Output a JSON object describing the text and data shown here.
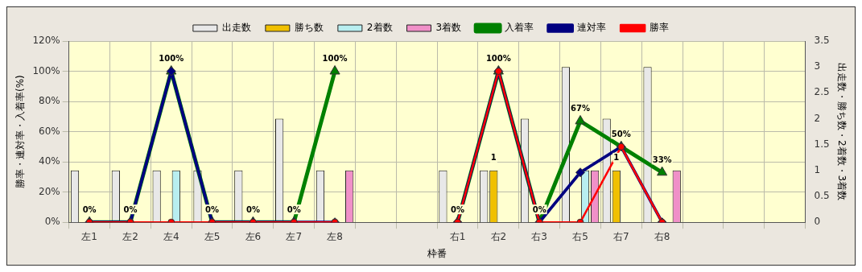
{
  "chart_data": {
    "type": "bar",
    "xlabel": "枠番",
    "ylabel": "勝率・連対率・入着率(%)",
    "y2label": "出走数・勝ち数・2着数・3着数",
    "categories": [
      "左1",
      "左2",
      "左4",
      "左5",
      "左6",
      "左7",
      "左8",
      null,
      null,
      "右1",
      "右2",
      "右3",
      "右5",
      "右7",
      "右8",
      null,
      null,
      null
    ],
    "series": [
      {
        "name": "出走数",
        "axis": "y2",
        "color": "#e8e8e8",
        "values": [
          1,
          1,
          1,
          1,
          1,
          2,
          1,
          null,
          null,
          1,
          1,
          2,
          3,
          2,
          3,
          null,
          null,
          null
        ]
      },
      {
        "name": "勝ち数",
        "axis": "y2",
        "color": "#f0c000",
        "values": [
          0,
          0,
          0,
          0,
          0,
          0,
          0,
          null,
          null,
          0,
          1,
          0,
          0,
          1,
          0,
          null,
          null,
          null
        ],
        "value_labels": [
          null,
          null,
          null,
          null,
          null,
          null,
          null,
          null,
          null,
          null,
          "1",
          null,
          null,
          "1",
          null,
          null,
          null,
          null
        ]
      },
      {
        "name": "2着数",
        "axis": "y2",
        "color": "#b8eef0",
        "values": [
          0,
          0,
          1,
          0,
          0,
          0,
          0,
          null,
          null,
          0,
          0,
          0,
          1,
          0,
          0,
          null,
          null,
          null
        ]
      },
      {
        "name": "3着数",
        "axis": "y2",
        "color": "#f090c8",
        "values": [
          0,
          0,
          0,
          0,
          0,
          0,
          1,
          null,
          null,
          0,
          0,
          0,
          1,
          0,
          1,
          null,
          null,
          null
        ]
      },
      {
        "name": "入着率",
        "type": "line",
        "color": "#008000",
        "marker": "triangle",
        "values": [
          0,
          0,
          100,
          0,
          0,
          0,
          100,
          null,
          null,
          0,
          100,
          0,
          67,
          50,
          33,
          null,
          null,
          null
        ],
        "value_labels": [
          "0%",
          "0%",
          "100%",
          "0%",
          "0%",
          "0%",
          "100%",
          null,
          null,
          "0%",
          "100%",
          "0%",
          "67%",
          "50%",
          "33%",
          null,
          null,
          null
        ]
      },
      {
        "name": "連対率",
        "type": "line",
        "color": "#000080",
        "marker": "diamond",
        "values": [
          0,
          0,
          100,
          0,
          0,
          0,
          0,
          null,
          null,
          0,
          100,
          0,
          33,
          50,
          0,
          null,
          null,
          null
        ]
      },
      {
        "name": "勝率",
        "type": "line",
        "color": "#ff0000",
        "marker": "circle",
        "values": [
          0,
          0,
          0,
          0,
          0,
          0,
          0,
          null,
          null,
          0,
          100,
          0,
          0,
          50,
          0,
          null,
          null,
          null
        ]
      }
    ],
    "ylim": [
      0,
      120
    ],
    "yticks": [
      {
        "value": 0,
        "label": "0%"
      },
      {
        "value": 20,
        "label": "20%"
      },
      {
        "value": 40,
        "label": "40%"
      },
      {
        "value": 60,
        "label": "60%"
      },
      {
        "value": 80,
        "label": "80%"
      },
      {
        "value": 100,
        "label": "100%"
      },
      {
        "value": 120,
        "label": "120%"
      }
    ],
    "y2lim": [
      0,
      3.5
    ],
    "y2ticks": [
      0,
      0.5,
      1,
      1.5,
      2,
      2.5,
      3,
      3.5
    ],
    "grid": true,
    "legend": "top"
  }
}
